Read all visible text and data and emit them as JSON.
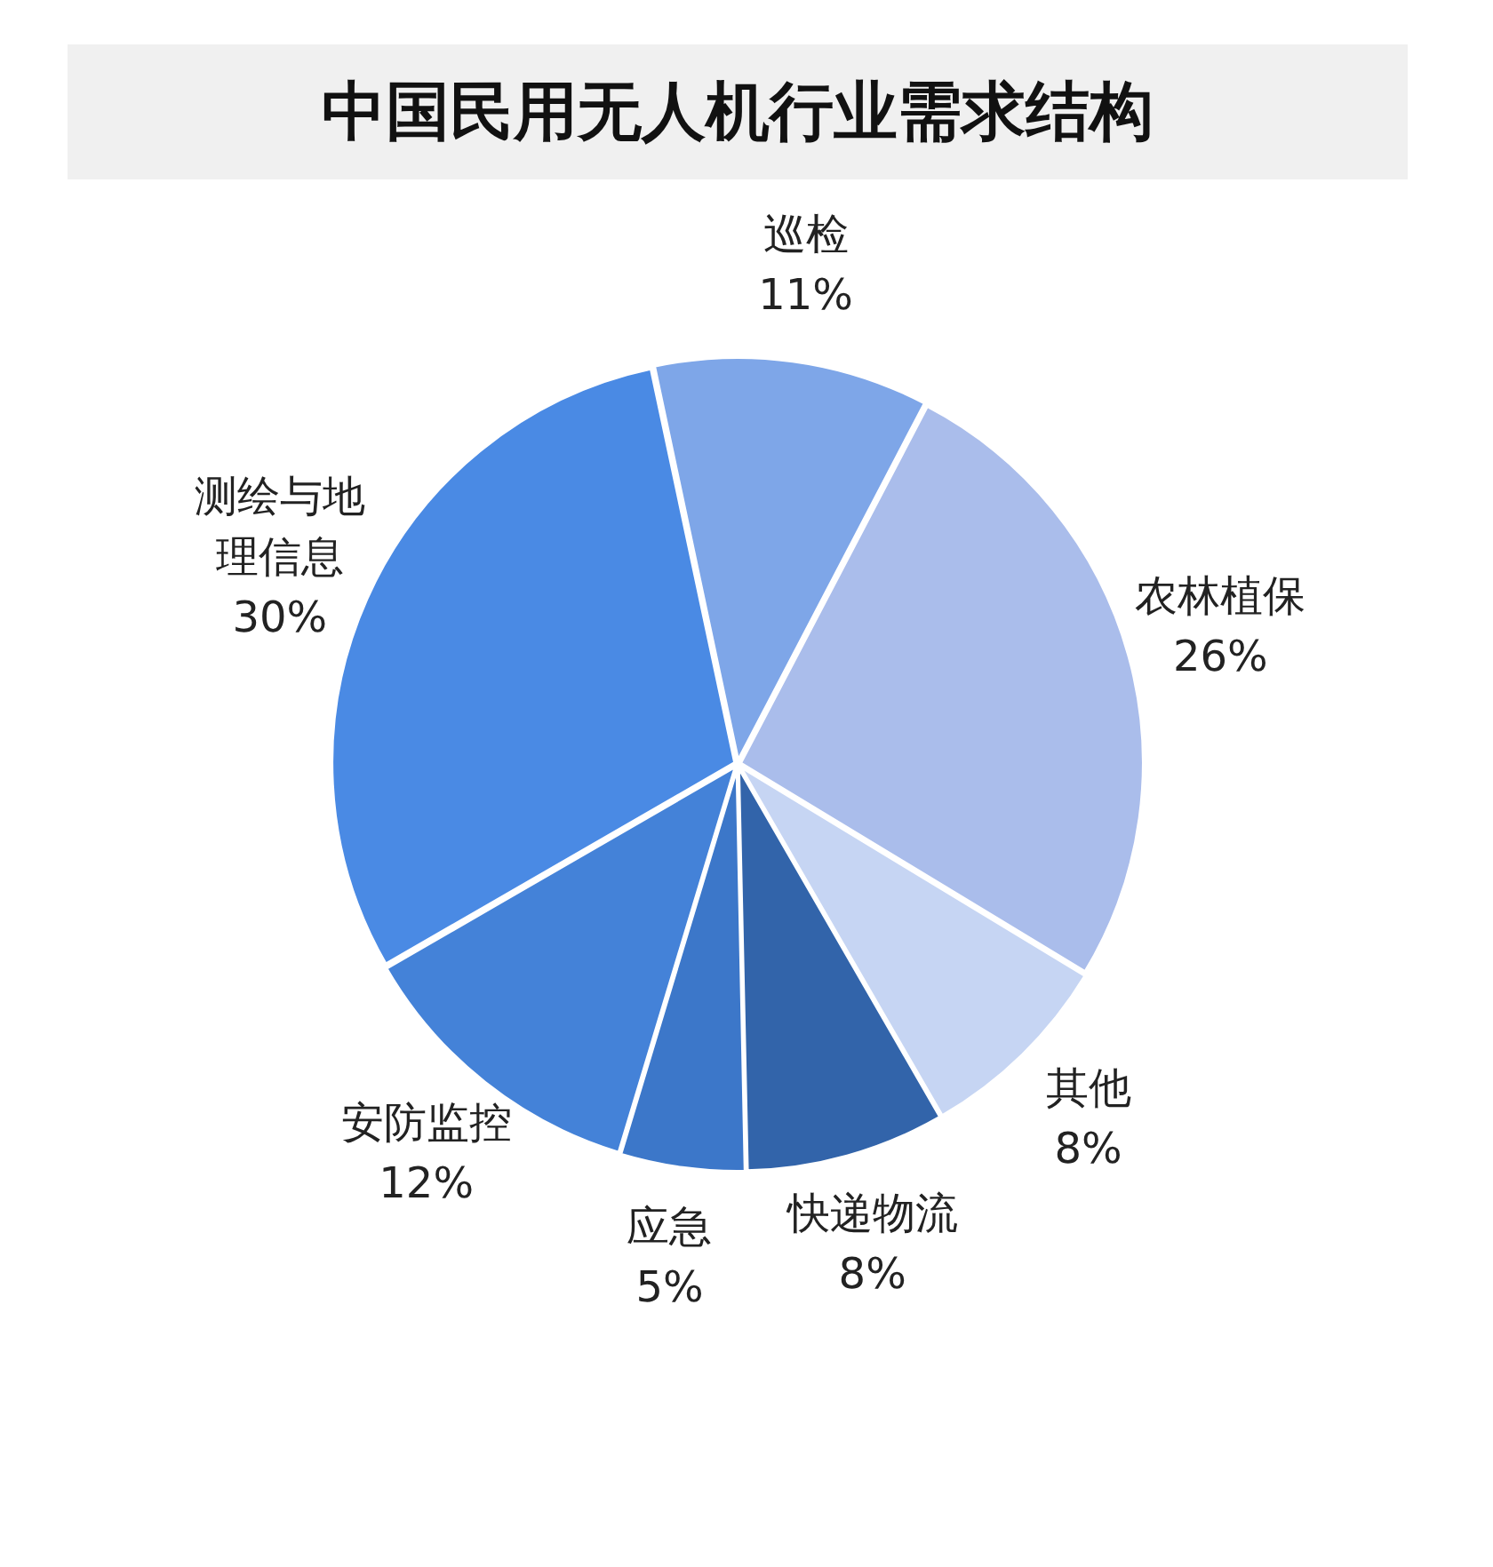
{
  "chart_data": {
    "type": "pie",
    "title": "中国民用无人机行业需求结构",
    "categories": [
      "巡检",
      "农林植保",
      "其他",
      "快递物流",
      "应急",
      "安防监控",
      "测绘与地理信息"
    ],
    "values": [
      11,
      26,
      8,
      8,
      5,
      12,
      30
    ],
    "colors": [
      "#7ea6e8",
      "#aabdeb",
      "#c6d5f3",
      "#3264aa",
      "#3c77c9",
      "#4482d8",
      "#4a8ae4"
    ],
    "value_labels": [
      "11%",
      "26%",
      "8%",
      "8%",
      "5%",
      "12%",
      "30%"
    ]
  }
}
